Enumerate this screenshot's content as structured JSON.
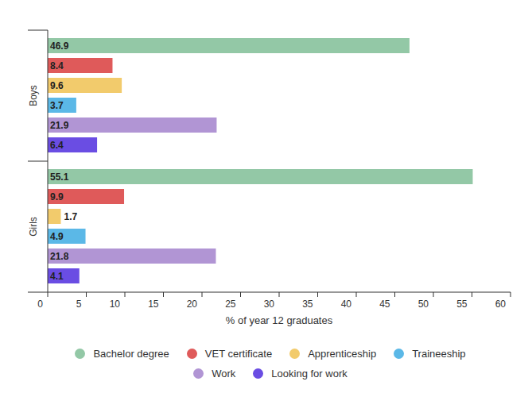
{
  "chart_data": {
    "type": "bar",
    "orientation": "horizontal",
    "xlabel": "% of year 12 graduates",
    "categories": [
      "Boys",
      "Girls"
    ],
    "series": [
      {
        "name": "Bachelor degree",
        "color": "#93c8a6",
        "values": [
          46.9,
          55.1
        ]
      },
      {
        "name": "VET certificate",
        "color": "#df5a5a",
        "values": [
          8.4,
          9.9
        ]
      },
      {
        "name": "Apprenticeship",
        "color": "#f2cb6c",
        "values": [
          9.6,
          1.7
        ]
      },
      {
        "name": "Traineeship",
        "color": "#5bb8e7",
        "values": [
          3.7,
          4.9
        ]
      },
      {
        "name": "Work",
        "color": "#b195d4",
        "values": [
          21.9,
          21.8
        ]
      },
      {
        "name": "Looking for work",
        "color": "#6a4de3",
        "values": [
          6.4,
          4.1
        ]
      }
    ],
    "xlim": [
      0,
      60
    ],
    "xticks": [
      0,
      5,
      10,
      15,
      20,
      25,
      30,
      35,
      40,
      45,
      50,
      55,
      60
    ],
    "grid": false,
    "data_labels": true,
    "legend": "bottom"
  }
}
